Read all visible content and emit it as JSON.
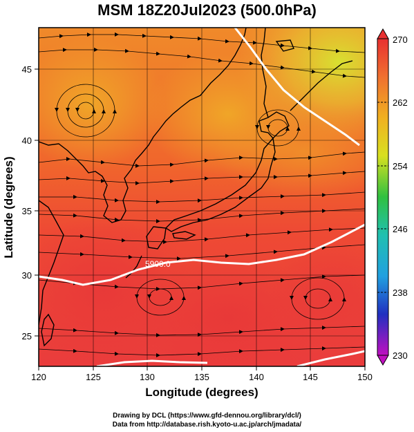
{
  "title": "MSM 18Z20Jul2023 (500.0hPa)",
  "x_axis": {
    "label": "Longitude (degrees)",
    "ticks": [
      "120",
      "125",
      "130",
      "135",
      "140",
      "145",
      "150"
    ]
  },
  "y_axis": {
    "label": "Latitude  (degrees)",
    "ticks": [
      "25",
      "30",
      "35",
      "40",
      "45"
    ]
  },
  "colorbar": {
    "labels": [
      "270",
      "262",
      "254",
      "246",
      "238",
      "230"
    ]
  },
  "contour_label": "5900.0",
  "credits": {
    "line1": "Drawing by DCL (https://www.gfd-dennou.org/library/dcl/)",
    "line2": "Data from http://database.rish.kyoto-u.ac.jp/arch/jmadata/"
  },
  "map_data": {
    "type": "temperature-streamline",
    "lon_range": [
      120,
      150
    ],
    "lat_range": [
      22.7,
      48
    ],
    "color_range": [
      230,
      270
    ],
    "contour_value": 5900.0,
    "vortex_centers": [
      {
        "lon": 124,
        "lat": 42.2,
        "label": ""
      },
      {
        "lon": 141.5,
        "lat": 40.3,
        "label": ""
      },
      {
        "lon": 132,
        "lat": 28,
        "label": ""
      },
      {
        "lon": 146,
        "lat": 27.5,
        "label": ""
      }
    ]
  }
}
